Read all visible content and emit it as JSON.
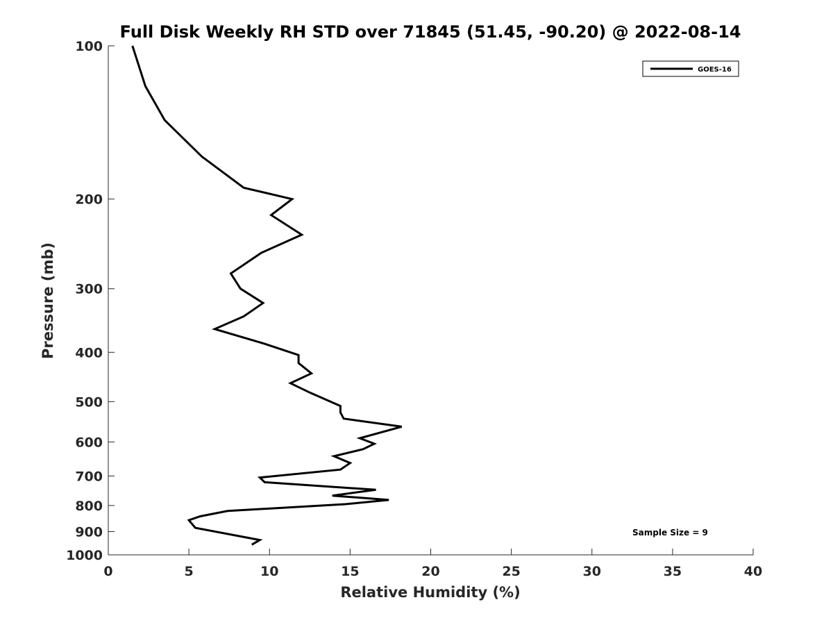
{
  "chart_data": {
    "type": "line",
    "title": "Full Disk Weekly RH STD over 71845 (51.45, -90.20) @ 2022-08-14",
    "xlabel": "Relative Humidity (%)",
    "ylabel": "Pressure (mb)",
    "xlim": [
      0,
      40
    ],
    "ylim": [
      100,
      1000
    ],
    "yscale": "log",
    "yreversed": true,
    "grid": false,
    "legend_position": "top-right",
    "xticks": [
      "0",
      "5",
      "10",
      "15",
      "20",
      "25",
      "30",
      "35",
      "40"
    ],
    "yticks": [
      "100",
      "200",
      "300",
      "400",
      "500",
      "600",
      "700",
      "800",
      "900",
      "1000"
    ],
    "series": [
      {
        "name": "GOES-16",
        "color": "#000000",
        "points": [
          [
            1.5,
            100
          ],
          [
            2.3,
            120
          ],
          [
            3.5,
            140
          ],
          [
            5.8,
            165
          ],
          [
            8.4,
            190
          ],
          [
            11.4,
            200
          ],
          [
            10.1,
            215
          ],
          [
            12.0,
            235
          ],
          [
            9.5,
            255
          ],
          [
            7.6,
            280
          ],
          [
            8.2,
            300
          ],
          [
            9.6,
            320
          ],
          [
            8.4,
            340
          ],
          [
            6.6,
            360
          ],
          [
            9.7,
            385
          ],
          [
            11.8,
            405
          ],
          [
            11.8,
            420
          ],
          [
            12.6,
            440
          ],
          [
            11.3,
            460
          ],
          [
            12.5,
            480
          ],
          [
            14.4,
            510
          ],
          [
            14.4,
            525
          ],
          [
            14.6,
            540
          ],
          [
            18.2,
            560
          ],
          [
            15.6,
            590
          ],
          [
            16.5,
            605
          ],
          [
            15.8,
            620
          ],
          [
            14.0,
            640
          ],
          [
            15.0,
            660
          ],
          [
            14.4,
            680
          ],
          [
            9.4,
            705
          ],
          [
            9.7,
            720
          ],
          [
            16.6,
            745
          ],
          [
            13.9,
            765
          ],
          [
            17.4,
            780
          ],
          [
            14.7,
            795
          ],
          [
            7.4,
            820
          ],
          [
            5.7,
            840
          ],
          [
            5.0,
            855
          ],
          [
            5.4,
            885
          ],
          [
            9.4,
            935
          ],
          [
            8.9,
            955
          ]
        ]
      }
    ],
    "annotations": [
      "Sample Size = 9"
    ]
  }
}
